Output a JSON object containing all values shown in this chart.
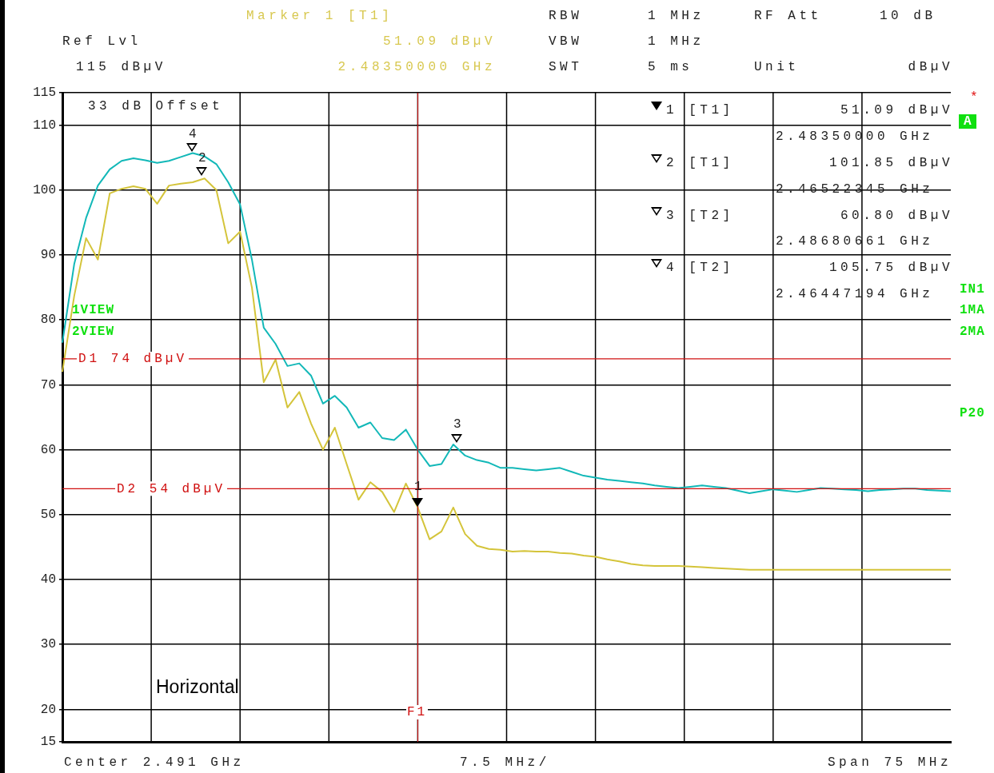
{
  "chart_data": {
    "type": "line",
    "categories": [
      null,
      null,
      null,
      null,
      null,
      null,
      null,
      null,
      null,
      null,
      null,
      null,
      null,
      null,
      null,
      null,
      null,
      null,
      null,
      null,
      null,
      null,
      null,
      null,
      null,
      null,
      null,
      null,
      null,
      null,
      null,
      null,
      null,
      null,
      null,
      null,
      null,
      null,
      null,
      null,
      null,
      null,
      null,
      null,
      null,
      null,
      null,
      null,
      null,
      null,
      null,
      null,
      null,
      null,
      null,
      null,
      null,
      null,
      null,
      null,
      null,
      null,
      null,
      null,
      null,
      null,
      null,
      null,
      null,
      null,
      null,
      null,
      null,
      null,
      null,
      null
    ],
    "series": [
      {
        "color": "#d4c43a",
        "values": [
          72,
          83.7,
          92.6,
          89.3,
          99.5,
          100.2,
          100.6,
          100.2,
          97.9,
          100.7,
          101,
          101.2,
          101.8,
          100,
          91.8,
          93.6,
          85,
          70.4,
          73.9,
          66.5,
          68.9,
          64,
          60,
          63.4,
          57.8,
          52.3,
          55,
          53.5,
          50.4,
          54.8,
          51.1,
          46.2,
          47.4,
          51.1,
          47,
          45.2,
          44.7,
          44.6,
          44.3,
          44.4,
          44.3,
          44.3,
          44.1,
          44,
          43.7,
          43.5,
          43.1,
          42.8,
          42.4,
          42.2,
          42.1,
          42.1,
          42.1,
          42,
          41.9,
          41.8,
          41.7,
          41.6,
          41.5,
          41.5,
          41.5,
          41.5,
          41.5,
          41.5,
          41.5,
          41.5,
          41.5,
          41.5,
          41.5,
          41.5,
          41.5,
          41.5,
          41.5,
          41.5,
          41.5,
          41.5
        ]
      },
      {
        "color": "#12b8b8",
        "values": [
          76.5,
          88.6,
          95.7,
          100.7,
          103.2,
          104.5,
          104.9,
          104.6,
          104.2,
          104.5,
          105.1,
          105.7,
          105.2,
          104,
          101.2,
          97.8,
          89.3,
          78.8,
          76.3,
          72.9,
          73.3,
          71.4,
          67.1,
          68.3,
          66.5,
          63.4,
          64.2,
          61.8,
          61.5,
          63.1,
          60,
          57.5,
          57.8,
          60.8,
          59.1,
          58.4,
          58,
          57.2,
          57.2,
          57,
          56.8,
          57,
          57.2,
          56.6,
          56,
          55.7,
          55.4,
          55.2,
          55,
          54.8,
          54.5,
          54.3,
          54.1,
          54.3,
          54.5,
          54.3,
          54.1,
          53.7,
          53.3,
          53.6,
          53.9,
          53.7,
          53.5,
          53.8,
          54.1,
          54,
          53.9,
          53.8,
          53.6,
          53.8,
          53.9,
          54,
          54,
          53.8,
          53.7,
          53.6
        ]
      }
    ],
    "ylim": [
      15,
      115
    ],
    "yticks": [
      15,
      20,
      30,
      40,
      50,
      60,
      70,
      80,
      90,
      100,
      110,
      115
    ],
    "tick_labels": "y",
    "grid": true,
    "line_style": "solid",
    "ref_lines": [
      {
        "axis": "y",
        "value": 74,
        "label": "D1 74 dBµV",
        "color": "#d01010"
      },
      {
        "axis": "y",
        "value": 54,
        "label": "D2 54 dBµV",
        "color": "#d01010"
      }
    ],
    "annotations": [
      "Marker 1 [T1]",
      "51.09 dBµV",
      "2.48350000 GHz",
      "Ref Lvl",
      "115 dBµV",
      "RBW",
      "1 MHz",
      "VBW",
      "1 MHz",
      "SWT",
      "5 ms",
      "RF Att",
      "10 dB",
      "Unit",
      "dBµV",
      "33 dB Offset",
      "1 [T1]",
      "51.09 dBµV",
      "2.48350000 GHz",
      "2 [T1]",
      "101.85 dBµV",
      "2.46522345 GHz",
      "3 [T2]",
      "60.80 dBµV",
      "2.48680661 GHz",
      "4 [T2]",
      "105.75 dBµV",
      "2.46447194 GHz",
      "1VIEW",
      "2VIEW",
      "Horizontal",
      "*",
      "A",
      "IN1",
      "1MA",
      "2MA",
      "P20",
      "Center 2.491 GHz",
      "7.5 MHz/",
      "Span 75 MHz",
      "1",
      "2",
      "3",
      "4",
      "F1"
    ]
  }
}
